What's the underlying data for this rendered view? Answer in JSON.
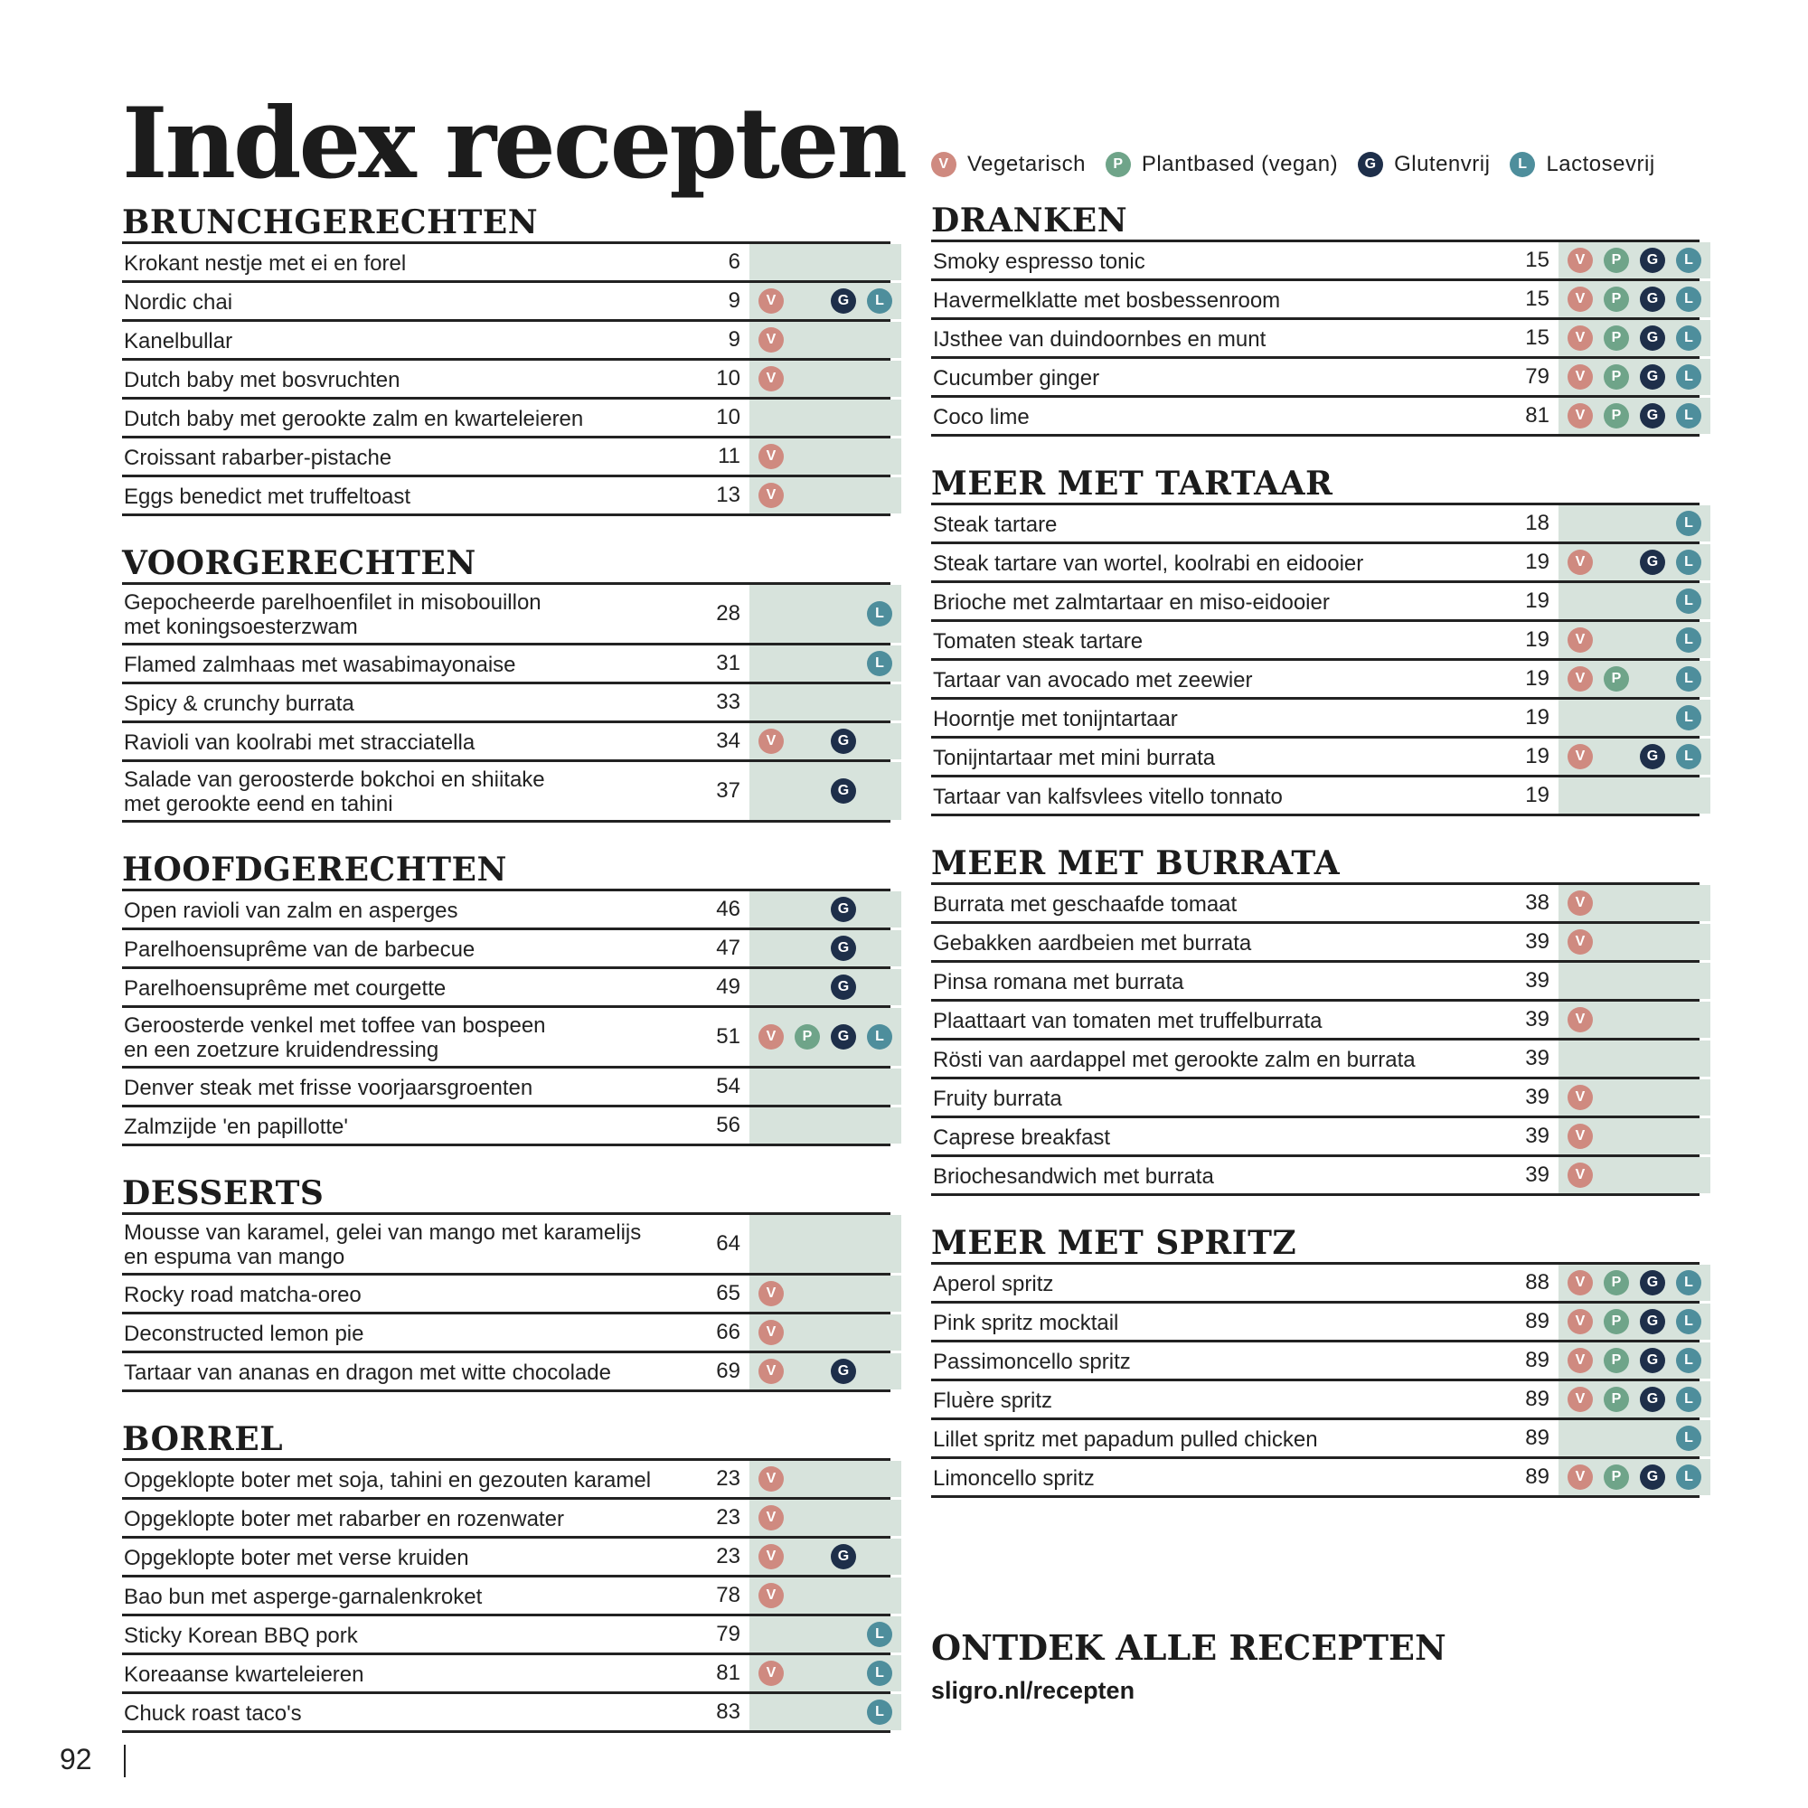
{
  "title": "Index recepten",
  "legend": [
    {
      "code": "V",
      "label": "Vegetarisch",
      "color": "#cf8a80"
    },
    {
      "code": "P",
      "label": "Plantbased (vegan)",
      "color": "#6fa489"
    },
    {
      "code": "G",
      "label": "Glutenvrij",
      "color": "#1e2f4a"
    },
    {
      "code": "L",
      "label": "Lactosevrij",
      "color": "#4e8e9c"
    }
  ],
  "sections_left": [
    {
      "title": "BRUNCHGERECHTEN",
      "rows": [
        {
          "name": "Krokant nestje met ei en forel",
          "page": "6",
          "tags": []
        },
        {
          "name": "Nordic chai",
          "page": "9",
          "tags": [
            "V",
            "G",
            "L"
          ]
        },
        {
          "name": "Kanelbullar",
          "page": "9",
          "tags": [
            "V"
          ]
        },
        {
          "name": "Dutch baby met bosvruchten",
          "page": "10",
          "tags": [
            "V"
          ]
        },
        {
          "name": "Dutch baby met gerookte zalm en kwarteleieren",
          "page": "10",
          "tags": []
        },
        {
          "name": "Croissant rabarber-pistache",
          "page": "11",
          "tags": [
            "V"
          ]
        },
        {
          "name": "Eggs benedict met truffeltoast",
          "page": "13",
          "tags": [
            "V"
          ]
        }
      ]
    },
    {
      "title": "VOORGERECHTEN",
      "rows": [
        {
          "name": "Gepocheerde parelhoenfilet in misobouillon\nmet koningsoesterzwam",
          "page": "28",
          "tags": [
            "L"
          ]
        },
        {
          "name": "Flamed zalmhaas met wasabimayonaise",
          "page": "31",
          "tags": [
            "L"
          ]
        },
        {
          "name": "Spicy & crunchy burrata",
          "page": "33",
          "tags": []
        },
        {
          "name": "Ravioli van koolrabi met stracciatella",
          "page": "34",
          "tags": [
            "V",
            "G"
          ]
        },
        {
          "name": "Salade van geroosterde bokchoi en shiitake\nmet gerookte eend en tahini",
          "page": "37",
          "tags": [
            "G"
          ]
        }
      ]
    },
    {
      "title": "HOOFDGERECHTEN",
      "rows": [
        {
          "name": "Open ravioli van zalm en asperges",
          "page": "46",
          "tags": [
            "G"
          ]
        },
        {
          "name": "Parelhoensuprême van de barbecue",
          "page": "47",
          "tags": [
            "G"
          ]
        },
        {
          "name": "Parelhoensuprême met courgette",
          "page": "49",
          "tags": [
            "G"
          ]
        },
        {
          "name": "Geroosterde venkel met toffee van bospeen\nen een zoetzure kruidendressing",
          "page": "51",
          "tags": [
            "V",
            "P",
            "G",
            "L"
          ]
        },
        {
          "name": "Denver steak met frisse voorjaarsgroenten",
          "page": "54",
          "tags": []
        },
        {
          "name": "Zalmzijde 'en papillotte'",
          "page": "56",
          "tags": []
        }
      ]
    },
    {
      "title": "DESSERTS",
      "rows": [
        {
          "name": "Mousse van karamel, gelei van mango met karamelijs\nen espuma van mango",
          "page": "64",
          "tags": []
        },
        {
          "name": "Rocky road matcha-oreo",
          "page": "65",
          "tags": [
            "V"
          ]
        },
        {
          "name": "Deconstructed lemon pie",
          "page": "66",
          "tags": [
            "V"
          ]
        },
        {
          "name": "Tartaar van ananas en dragon met witte chocolade",
          "page": "69",
          "tags": [
            "V",
            "G"
          ]
        }
      ]
    },
    {
      "title": "BORREL",
      "rows": [
        {
          "name": "Opgeklopte boter met soja, tahini en gezouten karamel",
          "page": "23",
          "tags": [
            "V"
          ]
        },
        {
          "name": "Opgeklopte boter met rabarber en rozenwater",
          "page": "23",
          "tags": [
            "V"
          ]
        },
        {
          "name": "Opgeklopte boter met verse kruiden",
          "page": "23",
          "tags": [
            "V",
            "G"
          ]
        },
        {
          "name": "Bao bun met asperge-garnalenkroket",
          "page": "78",
          "tags": [
            "V"
          ]
        },
        {
          "name": "Sticky Korean BBQ pork",
          "page": "79",
          "tags": [
            "L"
          ]
        },
        {
          "name": "Koreaanse kwarteleieren",
          "page": "81",
          "tags": [
            "V",
            "L"
          ]
        },
        {
          "name": "Chuck roast taco's",
          "page": "83",
          "tags": [
            "L"
          ]
        }
      ]
    }
  ],
  "sections_right": [
    {
      "title": "DRANKEN",
      "rows": [
        {
          "name": "Smoky espresso tonic",
          "page": "15",
          "tags": [
            "V",
            "P",
            "G",
            "L"
          ]
        },
        {
          "name": "Havermelklatte met bosbessenroom",
          "page": "15",
          "tags": [
            "V",
            "P",
            "G",
            "L"
          ]
        },
        {
          "name": "IJsthee van duindoornbes en munt",
          "page": "15",
          "tags": [
            "V",
            "P",
            "G",
            "L"
          ]
        },
        {
          "name": "Cucumber ginger",
          "page": "79",
          "tags": [
            "V",
            "P",
            "G",
            "L"
          ]
        },
        {
          "name": "Coco lime",
          "page": "81",
          "tags": [
            "V",
            "P",
            "G",
            "L"
          ]
        }
      ]
    },
    {
      "title": "MEER MET TARTAAR",
      "rows": [
        {
          "name": "Steak tartare",
          "page": "18",
          "tags": [
            "L"
          ]
        },
        {
          "name": "Steak tartare van wortel, koolrabi en eidooier",
          "page": "19",
          "tags": [
            "V",
            "G",
            "L"
          ]
        },
        {
          "name": "Brioche met zalmtartaar en miso-eidooier",
          "page": "19",
          "tags": [
            "L"
          ]
        },
        {
          "name": "Tomaten steak tartare",
          "page": "19",
          "tags": [
            "V",
            "L"
          ]
        },
        {
          "name": "Tartaar van avocado met zeewier",
          "page": "19",
          "tags": [
            "V",
            "P",
            "L"
          ]
        },
        {
          "name": "Hoorntje met tonijntartaar",
          "page": "19",
          "tags": [
            "L"
          ]
        },
        {
          "name": "Tonijntartaar met mini burrata",
          "page": "19",
          "tags": [
            "V",
            "G",
            "L"
          ]
        },
        {
          "name": "Tartaar van kalfsvlees vitello tonnato",
          "page": "19",
          "tags": []
        }
      ]
    },
    {
      "title": "MEER MET BURRATA",
      "rows": [
        {
          "name": "Burrata met geschaafde tomaat",
          "page": "38",
          "tags": [
            "V"
          ]
        },
        {
          "name": "Gebakken aardbeien met burrata",
          "page": "39",
          "tags": [
            "V"
          ]
        },
        {
          "name": "Pinsa romana met burrata",
          "page": "39",
          "tags": []
        },
        {
          "name": "Plaattaart van tomaten met truffelburrata",
          "page": "39",
          "tags": [
            "V"
          ]
        },
        {
          "name": "Rösti van aardappel met gerookte zalm en burrata",
          "page": "39",
          "tags": []
        },
        {
          "name": "Fruity burrata",
          "page": "39",
          "tags": [
            "V"
          ]
        },
        {
          "name": "Caprese breakfast",
          "page": "39",
          "tags": [
            "V"
          ]
        },
        {
          "name": "Briochesandwich met burrata",
          "page": "39",
          "tags": [
            "V"
          ]
        }
      ]
    },
    {
      "title": "MEER MET SPRITZ",
      "rows": [
        {
          "name": "Aperol spritz",
          "page": "88",
          "tags": [
            "V",
            "P",
            "G",
            "L"
          ]
        },
        {
          "name": "Pink spritz mocktail",
          "page": "89",
          "tags": [
            "V",
            "P",
            "G",
            "L"
          ]
        },
        {
          "name": "Passimoncello spritz",
          "page": "89",
          "tags": [
            "V",
            "P",
            "G",
            "L"
          ]
        },
        {
          "name": "Fluère spritz",
          "page": "89",
          "tags": [
            "V",
            "P",
            "G",
            "L"
          ]
        },
        {
          "name": "Lillet spritz met papadum pulled chicken",
          "page": "89",
          "tags": [
            "L"
          ]
        },
        {
          "name": "Limoncello spritz",
          "page": "89",
          "tags": [
            "V",
            "P",
            "G",
            "L"
          ]
        }
      ]
    }
  ],
  "discover": {
    "title": "ONTDEK ALLE RECEPTEN",
    "url": "sligro.nl/recepten"
  },
  "page_number": "92"
}
